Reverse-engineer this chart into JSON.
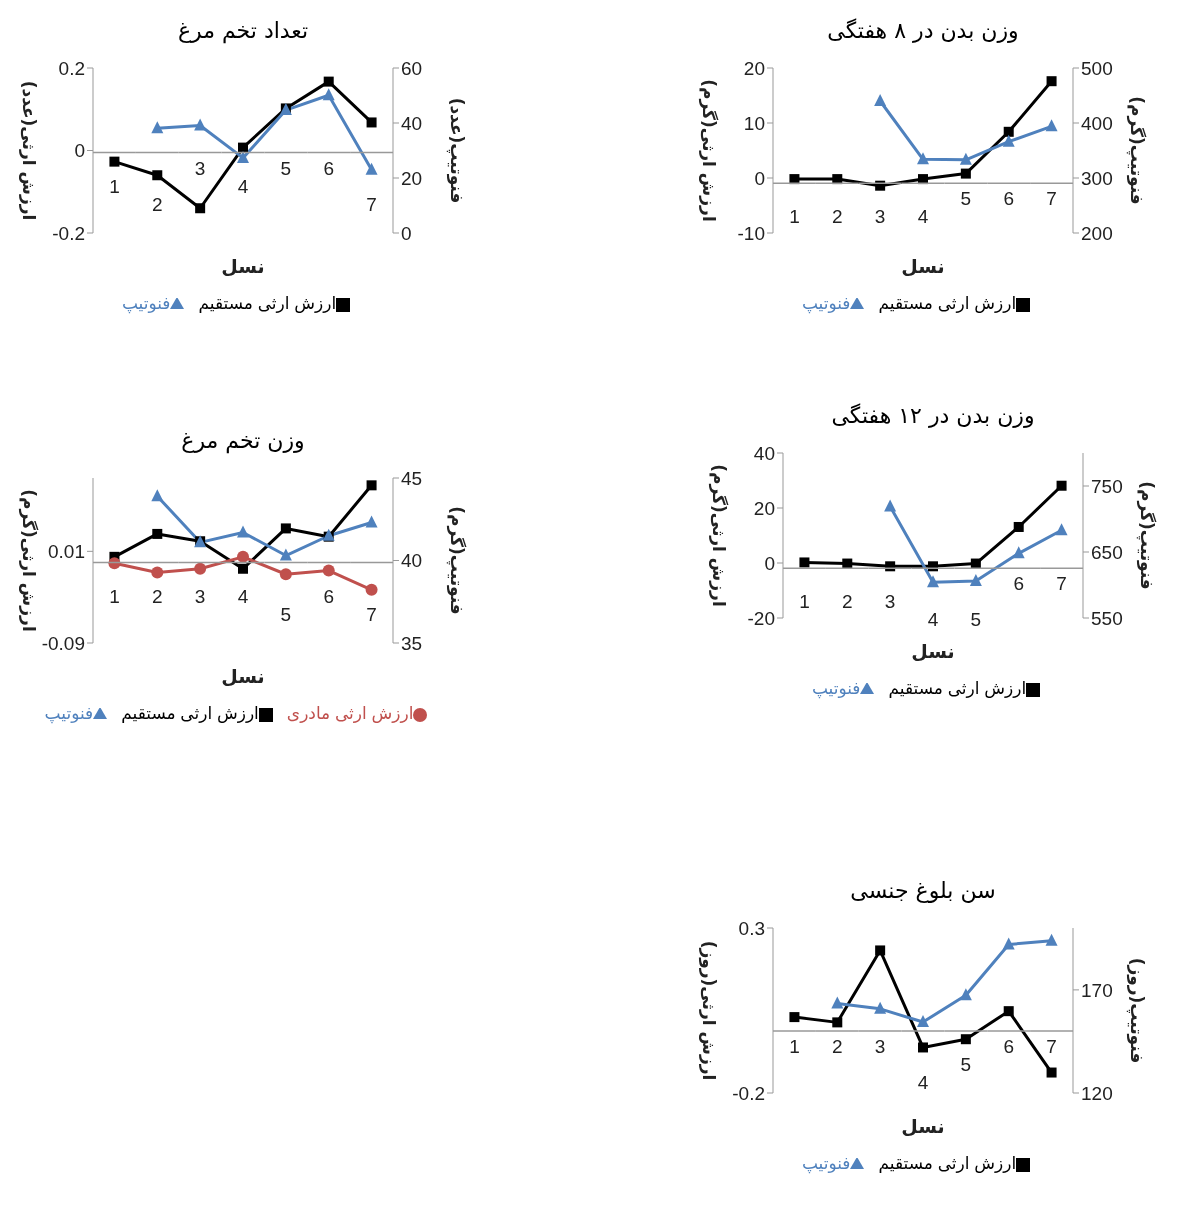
{
  "chart_data": [
    {
      "type": "line",
      "title": "تعداد تخم مرغ",
      "xlabel": "نسل",
      "ylabel": "ارزش ارثی(عدد)",
      "y2label": "فنوتیپ(عدد)",
      "categories": [
        "1",
        "2",
        "3",
        "4",
        "5",
        "6",
        "7"
      ],
      "series": [
        {
          "name": "ارزش ارثی مستقیم",
          "color": "#000000",
          "marker": "square",
          "values": [
            -0.027,
            -0.06,
            -0.14,
            0.007,
            0.102,
            0.167,
            0.068
          ]
        },
        {
          "name": "فنوتیپ",
          "color": "#4f81bd",
          "marker": "triangle",
          "axis": "y2",
          "values": [
            null,
            38.1,
            39.1,
            27.3,
            44.7,
            50.1,
            23.0
          ]
        }
      ],
      "ylim": [
        -0.2,
        0.2
      ],
      "yticks": [
        -0.2,
        0,
        0.2
      ],
      "y2lim": [
        0,
        60
      ],
      "y2ticks": [
        0,
        20,
        40,
        60
      ],
      "grid": false,
      "legend": "bottom"
    },
    {
      "type": "line",
      "title": "وزن بدن در ۸ هفتگی",
      "xlabel": "نسل",
      "ylabel": "ارزش ارثی(گرم)",
      "y2label": "فنوتیپ(گرم)",
      "categories": [
        "1",
        "2",
        "3",
        "4",
        "5",
        "6",
        "7"
      ],
      "series": [
        {
          "name": "ارزش ارثی مستقیم",
          "color": "#000000",
          "marker": "square",
          "values": [
            -0.2,
            -0.2,
            -1.4,
            -0.2,
            0.8,
            8.4,
            17.6
          ]
        },
        {
          "name": "فنوتیپ",
          "color": "#4f81bd",
          "marker": "triangle",
          "axis": "y2",
          "values": [
            null,
            null,
            440,
            334,
            333,
            366,
            394
          ]
        }
      ],
      "ylim": [
        -10,
        20
      ],
      "yticks": [
        -10,
        0,
        10,
        20
      ],
      "y2lim": [
        200,
        500
      ],
      "y2ticks": [
        200,
        300,
        400,
        500
      ],
      "grid": false,
      "legend": "bottom"
    },
    {
      "type": "line",
      "title": "وزن تخم مرغ",
      "xlabel": "نسل",
      "ylabel": "ارزش ارثی(گرم)",
      "y2label": "فنوتیپ(گرم)",
      "categories": [
        "1",
        "2",
        "3",
        "4",
        "5",
        "6",
        "7"
      ],
      "series": [
        {
          "name": "ارزش ارثی مستقیم",
          "color": "#000000",
          "marker": "square",
          "values": [
            0.004,
            0.029,
            0.021,
            -0.009,
            0.035,
            0.026,
            0.082
          ]
        },
        {
          "name": "ارزش ارثی مادری",
          "color": "#c0504d",
          "marker": "circle",
          "values": [
            -0.003,
            -0.013,
            -0.009,
            0.004,
            -0.015,
            -0.011,
            -0.032
          ]
        },
        {
          "name": "فنوتیپ",
          "color": "#4f81bd",
          "marker": "triangle",
          "axis": "y2",
          "values": [
            null,
            43.9,
            41.1,
            41.7,
            40.3,
            41.5,
            42.3
          ]
        }
      ],
      "ylim": [
        -0.09,
        0.09
      ],
      "yticks": [
        -0.09,
        0.01
      ],
      "y2lim": [
        35,
        45
      ],
      "y2ticks": [
        35,
        40,
        45
      ],
      "grid": false,
      "legend": "bottom"
    },
    {
      "type": "line",
      "title": "وزن بدن در ۱۲ هفتگی",
      "xlabel": "نسل",
      "ylabel": "ارزش ارثی(گرم)",
      "y2label": "فنوتیپ(گرم)",
      "categories": [
        "1",
        "2",
        "3",
        "4",
        "5",
        "6",
        "7"
      ],
      "series": [
        {
          "name": "ارزش ارثی مستقیم",
          "color": "#000000",
          "marker": "square",
          "values": [
            0.2,
            -0.2,
            -1.2,
            -1.2,
            -0.2,
            13.1,
            28.1
          ]
        },
        {
          "name": "فنوتیپ",
          "color": "#4f81bd",
          "marker": "triangle",
          "axis": "y2",
          "values": [
            null,
            null,
            719,
            604,
            606,
            648,
            683
          ]
        }
      ],
      "ylim": [
        -20,
        40
      ],
      "yticks": [
        -20,
        0,
        20,
        40
      ],
      "y2lim": [
        550,
        800
      ],
      "y2ticks": [
        550,
        650,
        750
      ],
      "grid": false,
      "legend": "bottom"
    },
    {
      "type": "line",
      "title": "سن بلوغ جنسی",
      "xlabel": "نسل",
      "ylabel": "ارزش ارثی(روز)",
      "y2label": "فنوتیپ(روز)",
      "categories": [
        "1",
        "2",
        "3",
        "4",
        "5",
        "6",
        "7"
      ],
      "series": [
        {
          "name": "ارزش ارثی مستقیم",
          "color": "#000000",
          "marker": "square",
          "values": [
            0.03,
            0.014,
            0.232,
            -0.062,
            -0.037,
            0.048,
            -0.138
          ]
        },
        {
          "name": "فنوتیپ",
          "color": "#4f81bd",
          "marker": "triangle",
          "axis": "y2",
          "values": [
            null,
            163.4,
            160.8,
            154.4,
            167.4,
            192,
            193.8
          ]
        }
      ],
      "ylim": [
        -0.2,
        0.3
      ],
      "yticks": [
        -0.2,
        0.3
      ],
      "y2lim": [
        120,
        200
      ],
      "y2ticks": [
        120,
        170
      ],
      "grid": false,
      "legend": "bottom"
    }
  ]
}
